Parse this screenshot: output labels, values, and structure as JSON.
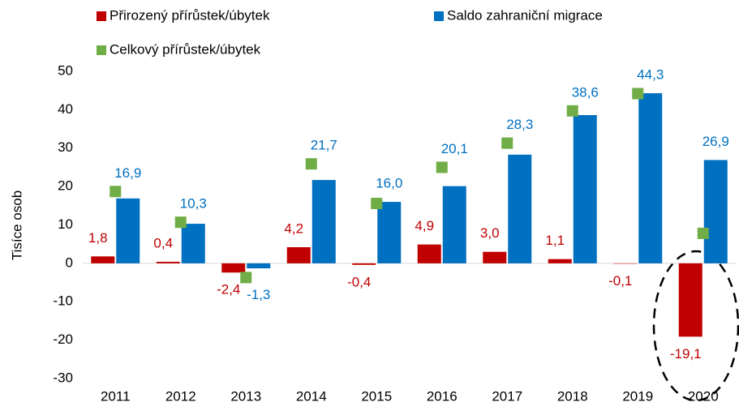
{
  "chart_data": {
    "type": "bar",
    "y_label": "Tisíce osob",
    "categories": [
      "2011",
      "2012",
      "2013",
      "2014",
      "2015",
      "2016",
      "2017",
      "2018",
      "2019",
      "2020"
    ],
    "series": [
      {
        "name": "Přirozený přírůstek/úbytek",
        "color": "#c00000",
        "values": [
          1.8,
          0.4,
          -2.4,
          4.2,
          -0.4,
          4.9,
          3.0,
          1.1,
          -0.1,
          -19.1
        ],
        "value_labels": [
          "1,8",
          "0,4",
          "-2,4",
          "4,2",
          "-0,4",
          "4,9",
          "3,0",
          "1,1",
          "-0,1",
          "-19,1"
        ]
      },
      {
        "name": "Saldo zahraniční migrace",
        "color": "#0070c0",
        "values": [
          16.9,
          10.3,
          -1.3,
          21.7,
          16.0,
          20.1,
          28.3,
          38.6,
          44.3,
          26.9
        ],
        "value_labels": [
          "16,9",
          "10,3",
          "-1,3",
          "21,7",
          "16,0",
          "20,1",
          "28,3",
          "38,6",
          "44,3",
          "26,9"
        ]
      },
      {
        "name": "Celkový přírůstek/úbytek",
        "color": "#70ad47",
        "marker": "square",
        "values": [
          18.7,
          10.7,
          -3.7,
          25.9,
          15.6,
          25.0,
          31.3,
          39.7,
          44.2,
          7.8
        ]
      }
    ],
    "ylim": [
      -30,
      50
    ],
    "yticks": [
      -30,
      -20,
      -10,
      0,
      10,
      20,
      30,
      40,
      50
    ],
    "grid": false
  }
}
